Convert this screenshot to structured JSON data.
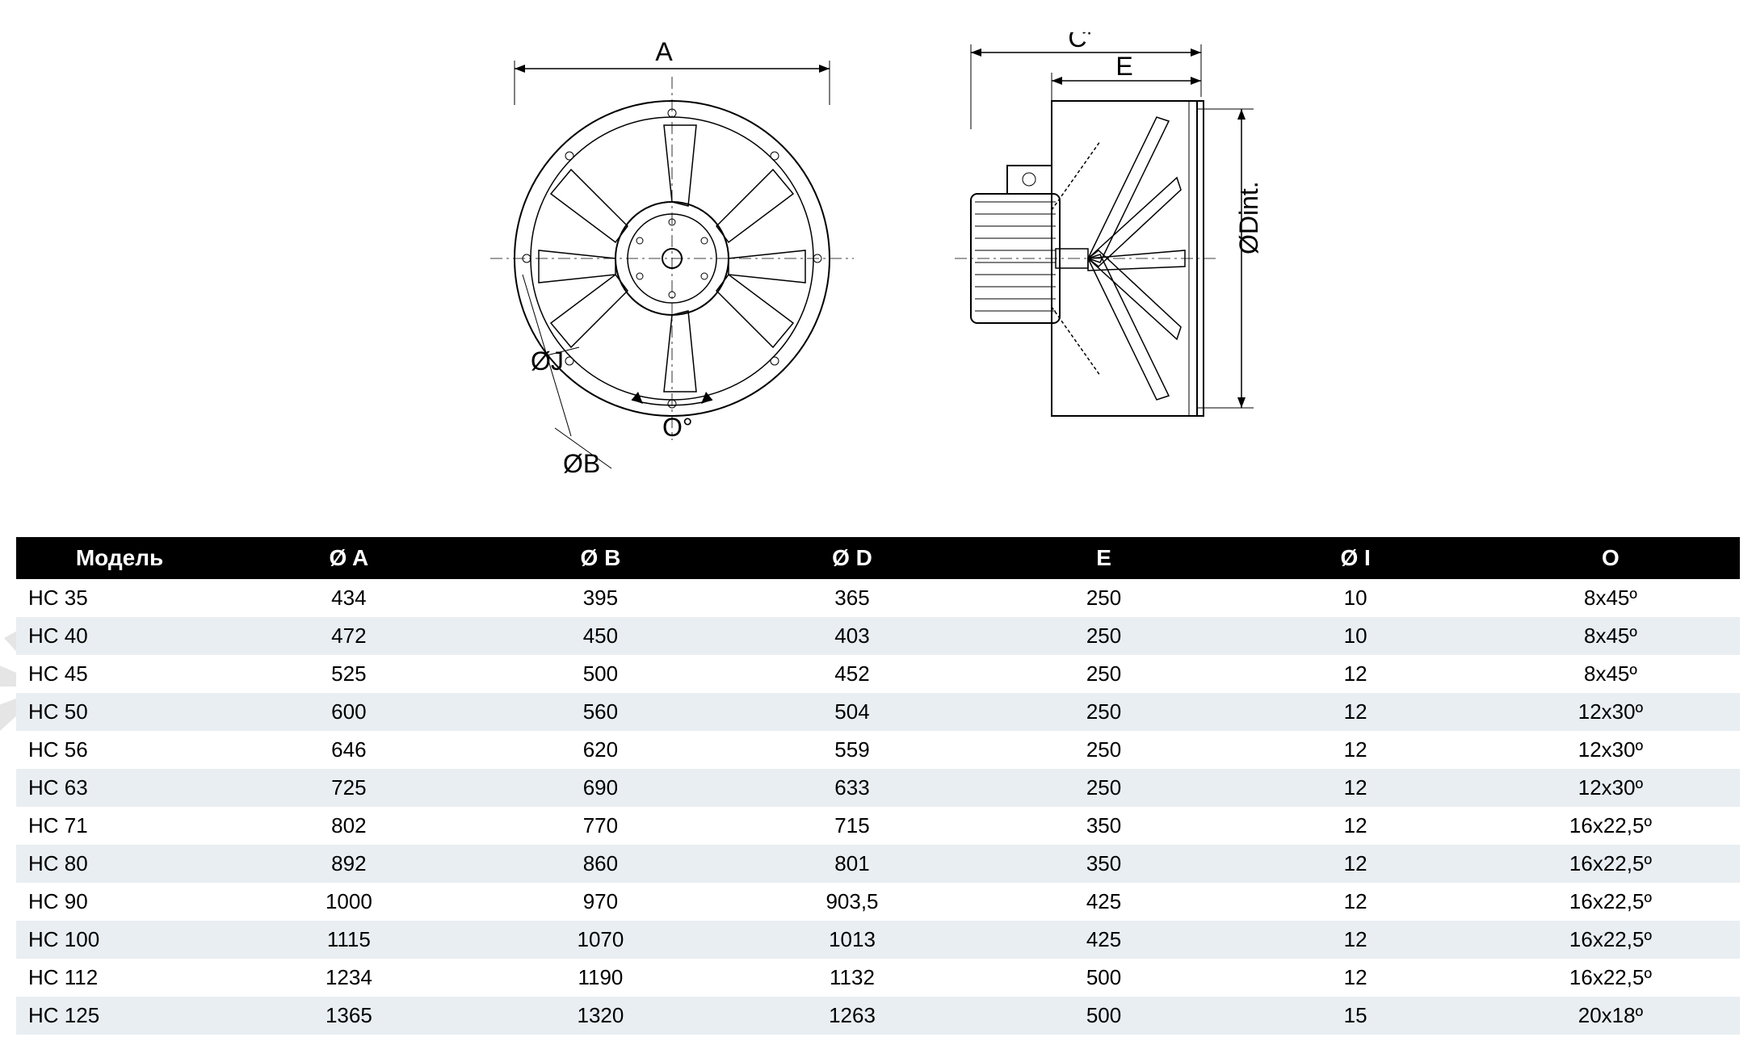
{
  "diagram": {
    "labels": {
      "a": "A",
      "b": "ØB",
      "j": "ØJ",
      "o": "O°",
      "c_prime": "C'",
      "e": "E",
      "d_int": "ØDint."
    }
  },
  "table": {
    "headers": [
      "Модель",
      "Ø A",
      "Ø B",
      "Ø D",
      "E",
      "Ø I",
      "O"
    ],
    "rows": [
      [
        "HC 35",
        "434",
        "395",
        "365",
        "250",
        "10",
        "8x45º"
      ],
      [
        "HC 40",
        "472",
        "450",
        "403",
        "250",
        "10",
        "8x45º"
      ],
      [
        "HC 45",
        "525",
        "500",
        "452",
        "250",
        "12",
        "8x45º"
      ],
      [
        "HC 50",
        "600",
        "560",
        "504",
        "250",
        "12",
        "12x30º"
      ],
      [
        "HC 56",
        "646",
        "620",
        "559",
        "250",
        "12",
        "12x30º"
      ],
      [
        "HC 63",
        "725",
        "690",
        "633",
        "250",
        "12",
        "12x30º"
      ],
      [
        "HC 71",
        "802",
        "770",
        "715",
        "350",
        "12",
        "16x22,5º"
      ],
      [
        "HC 80",
        "892",
        "860",
        "801",
        "350",
        "12",
        "16x22,5º"
      ],
      [
        "HC 90",
        "1000",
        "970",
        "903,5",
        "425",
        "12",
        "16x22,5º"
      ],
      [
        "HC 100",
        "1115",
        "1070",
        "1013",
        "425",
        "12",
        "16x22,5º"
      ],
      [
        "HC 112",
        "1234",
        "1190",
        "1132",
        "500",
        "12",
        "16x22,5º"
      ],
      [
        "HC 125",
        "1365",
        "1320",
        "1263",
        "500",
        "15",
        "20x18º"
      ]
    ],
    "header_bg": "#000000",
    "header_text_color": "#ffffff",
    "row_even_bg": "#e8eef2",
    "row_odd_bg": "#ffffff",
    "font_size": 26,
    "header_font_size": 28
  },
  "watermark": {
    "text": "VENTEL",
    "opacity": 0.15
  },
  "column_widths": [
    "12%",
    "14.6%",
    "14.6%",
    "14.6%",
    "14.6%",
    "14.6%",
    "15%"
  ]
}
